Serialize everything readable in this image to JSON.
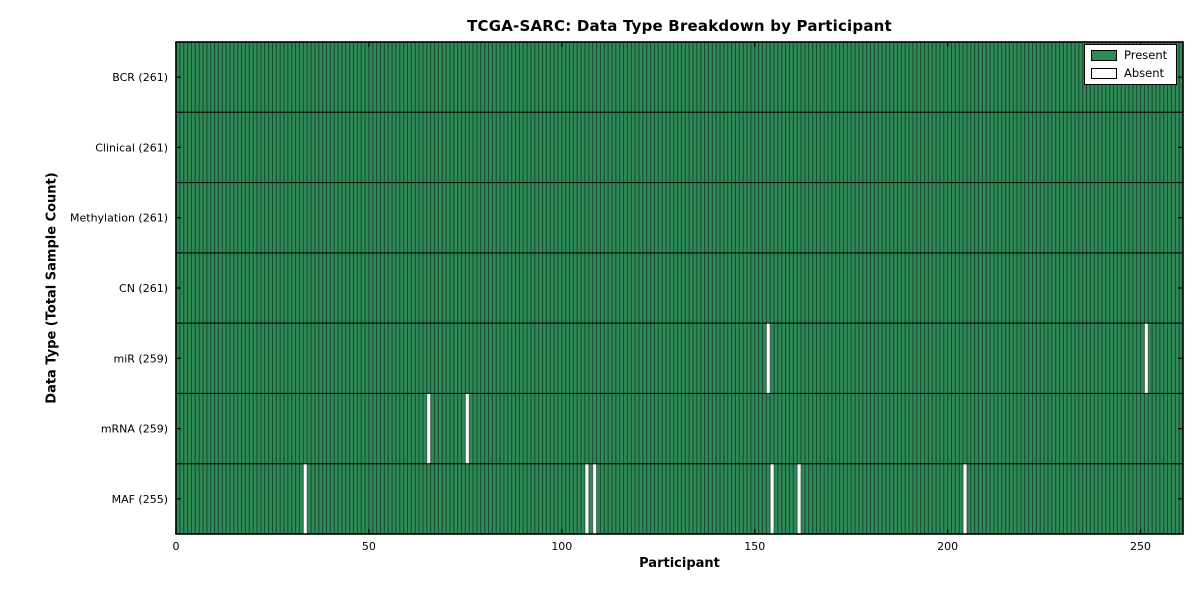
{
  "title": "TCGA-SARC: Data Type Breakdown by Participant",
  "chart_data": {
    "type": "heatmap",
    "title": "TCGA-SARC: Data Type Breakdown by Participant",
    "xlabel": "Participant",
    "ylabel": "Data Type (Total Sample Count)",
    "xlim": [
      0,
      261
    ],
    "n_participants": 261,
    "x_ticks": [
      0,
      50,
      100,
      150,
      200,
      250
    ],
    "grid": false,
    "legend_position": "upper right",
    "rows": [
      {
        "data_type": "BCR",
        "label": "BCR (261)",
        "present_count": 261,
        "absent_participants": []
      },
      {
        "data_type": "Clinical",
        "label": "Clinical (261)",
        "present_count": 261,
        "absent_participants": []
      },
      {
        "data_type": "Methylation",
        "label": "Methylation (261)",
        "present_count": 261,
        "absent_participants": []
      },
      {
        "data_type": "CN",
        "label": "CN (261)",
        "present_count": 261,
        "absent_participants": []
      },
      {
        "data_type": "miR",
        "label": "miR (259)",
        "present_count": 259,
        "absent_participants": [
          153,
          251
        ]
      },
      {
        "data_type": "mRNA",
        "label": "mRNA (259)",
        "present_count": 259,
        "absent_participants": [
          65,
          75
        ]
      },
      {
        "data_type": "MAF",
        "label": "MAF (255)",
        "present_count": 255,
        "absent_participants": [
          33,
          106,
          108,
          154,
          161,
          204
        ]
      }
    ],
    "legend": [
      {
        "label": "Present",
        "color": "#2e8b57"
      },
      {
        "label": "Absent",
        "color": "#ffffff"
      }
    ],
    "colors": {
      "present": "#2e8b57",
      "absent": "#ffffff",
      "edge": "#000000",
      "background": "#ffffff"
    }
  }
}
